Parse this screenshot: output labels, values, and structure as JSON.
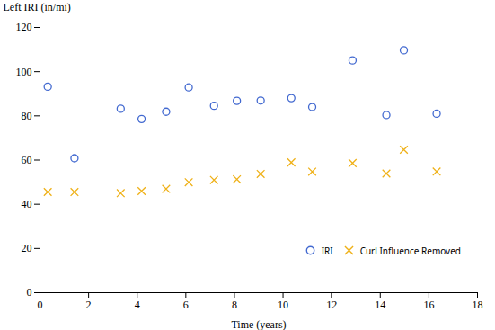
{
  "chart_data": {
    "type": "scatter",
    "xlabel": "Time (years)",
    "ylabel": "Left IRI (in/mi)",
    "x": [
      0.32,
      1.42,
      3.32,
      4.18,
      5.19,
      6.12,
      7.16,
      8.1,
      9.08,
      10.34,
      11.2,
      12.86,
      14.25,
      14.97,
      16.32
    ],
    "series": [
      {
        "name": "IRI",
        "marker": "circle",
        "values": [
          93.19,
          60.82,
          83.23,
          78.56,
          81.87,
          92.88,
          84.55,
          86.81,
          86.92,
          88.03,
          84.01,
          105.09,
          80.37,
          109.67,
          80.97
        ]
      },
      {
        "name": "Curl Influence Removed",
        "marker": "x",
        "values": [
          45.56,
          45.53,
          45.04,
          45.97,
          46.96,
          49.96,
          50.97,
          51.29,
          53.71,
          58.93,
          54.73,
          58.62,
          53.89,
          64.67,
          54.79
        ]
      }
    ],
    "xlim": [
      0,
      18
    ],
    "ylim": [
      0,
      120
    ],
    "xticks": [
      0,
      2,
      4,
      6,
      8,
      10,
      12,
      14,
      16,
      18
    ],
    "yticks": [
      0,
      20,
      40,
      60,
      80,
      100,
      120
    ],
    "legend": "lower right"
  }
}
